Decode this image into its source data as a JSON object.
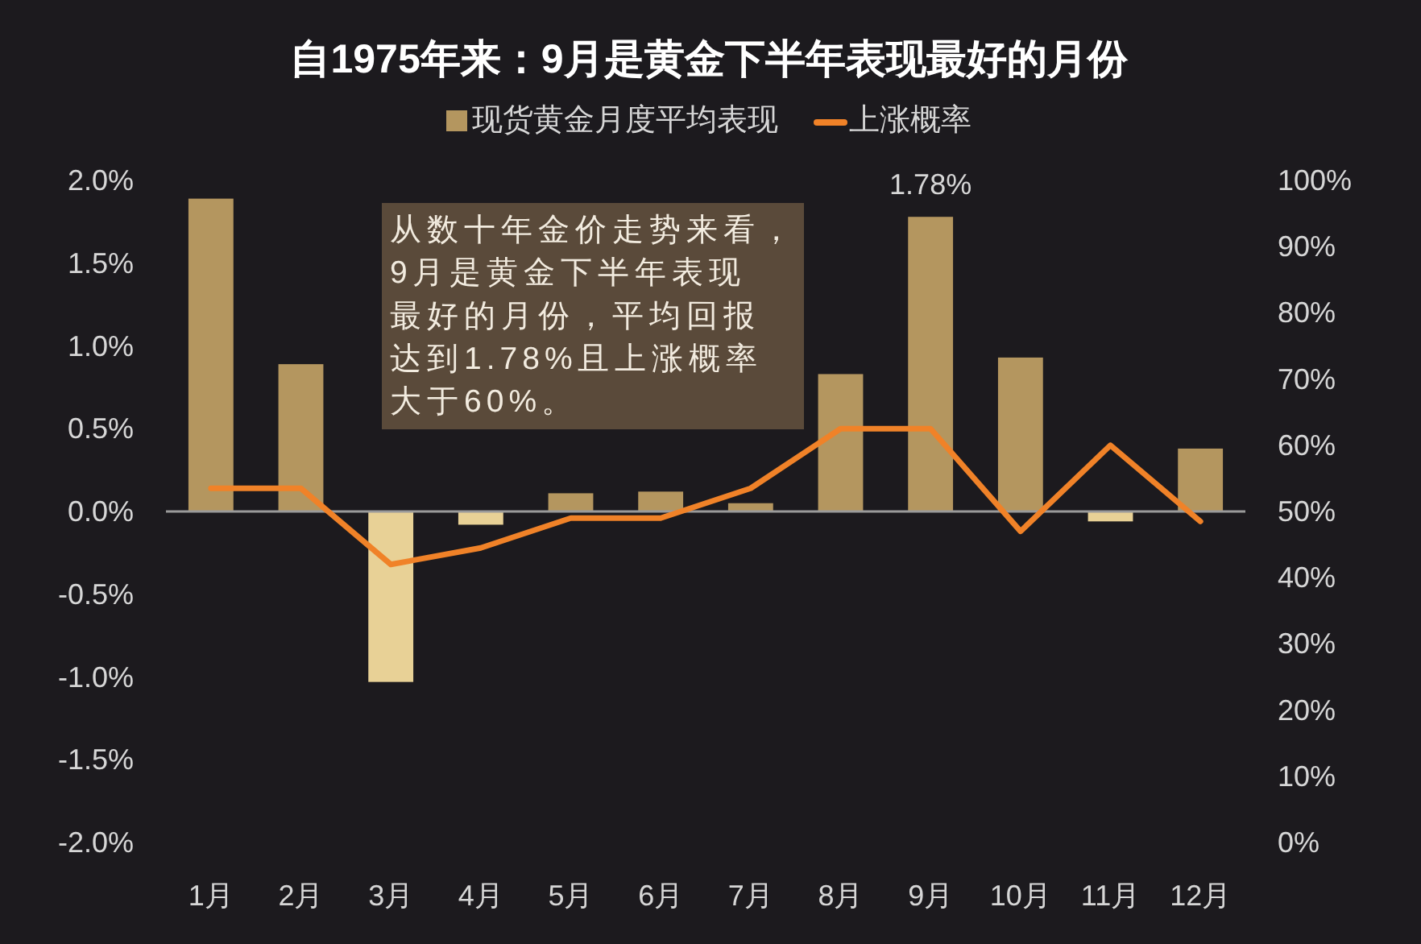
{
  "chart_data": {
    "type": "bar",
    "title": "自1975年来：9月是黄金下半年表现最好的月份",
    "categories": [
      "1月",
      "2月",
      "3月",
      "4月",
      "5月",
      "6月",
      "7月",
      "8月",
      "9月",
      "10月",
      "11月",
      "12月"
    ],
    "series": [
      {
        "name": "现货黄金月度平均表现",
        "color": "#b4965f",
        "colors": [
          "#b4965f",
          "#b4965f",
          "#e8d196",
          "#e8d196",
          "#b4965f",
          "#b4965f",
          "#b4965f",
          "#b4965f",
          "#b4965f",
          "#b4965f",
          "#e8d196",
          "#b4965f"
        ],
        "values": [
          1.89,
          0.89,
          -1.03,
          -0.08,
          0.11,
          0.12,
          0.05,
          0.83,
          1.78,
          0.93,
          -0.06,
          0.38
        ],
        "value_labels": [
          null,
          null,
          null,
          null,
          null,
          null,
          null,
          null,
          "1.78%",
          null,
          null,
          null
        ]
      },
      {
        "name": "上涨概率",
        "type": "line",
        "axis": "y2",
        "color": "#f08228",
        "values": [
          53.5,
          53.5,
          42,
          44.5,
          49,
          49,
          53.5,
          62.5,
          62.5,
          47,
          60,
          48.5
        ]
      }
    ],
    "ylim": [
      -2,
      2
    ],
    "yticks": [
      {
        "value": -2,
        "label": "-2.0%"
      },
      {
        "value": -1.5,
        "label": "-1.5%"
      },
      {
        "value": -1,
        "label": "-1.0%"
      },
      {
        "value": -0.5,
        "label": "-0.5%"
      },
      {
        "value": 0,
        "label": "0.0%"
      },
      {
        "value": 0.5,
        "label": "0.5%"
      },
      {
        "value": 1,
        "label": "1.0%"
      },
      {
        "value": 1.5,
        "label": "1.5%"
      },
      {
        "value": 2,
        "label": "2.0%"
      }
    ],
    "y2lim": [
      0,
      100
    ],
    "y2ticks": [
      {
        "value": 0,
        "label": "0%"
      },
      {
        "value": 10,
        "label": "10%"
      },
      {
        "value": 20,
        "label": "20%"
      },
      {
        "value": 30,
        "label": "30%"
      },
      {
        "value": 40,
        "label": "40%"
      },
      {
        "value": 50,
        "label": "50%"
      },
      {
        "value": 60,
        "label": "60%"
      },
      {
        "value": 70,
        "label": "70%"
      },
      {
        "value": 80,
        "label": "80%"
      },
      {
        "value": 90,
        "label": "90%"
      },
      {
        "value": 100,
        "label": "100%"
      }
    ],
    "legend": "top",
    "annotations": [
      "从数十年金价走势来看，9月是黄金下半年表现最好的月份，平均回报达到1.78%且上涨概率大于60%。"
    ]
  }
}
